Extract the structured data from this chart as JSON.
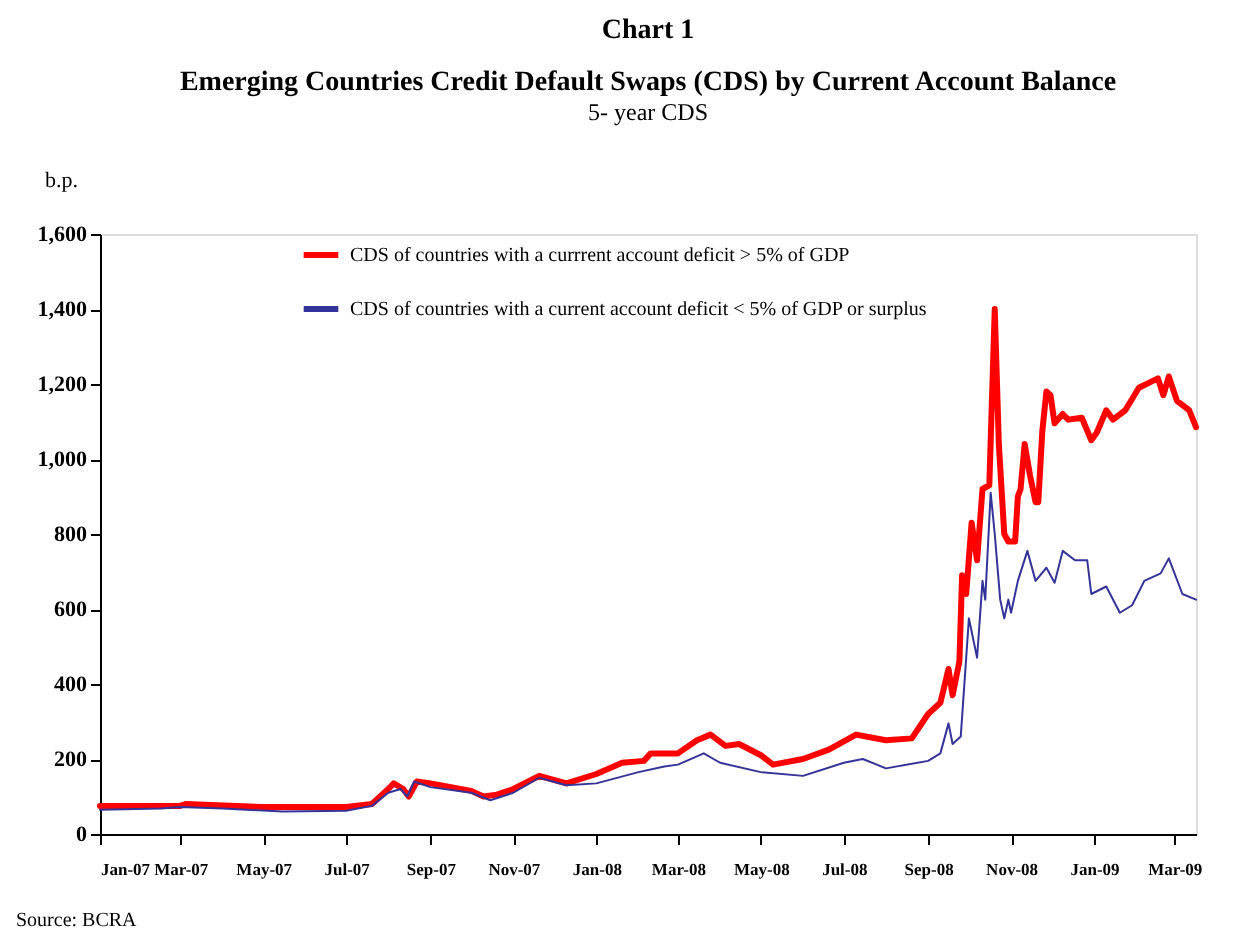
{
  "chart_data": {
    "type": "line",
    "title": "Emerging Countries Credit Default Swaps (CDS) by Current Account Balance",
    "subtitle": "5- year CDS",
    "ylabel": "b.p.",
    "annotations": [
      "Chart 1",
      "Source: BCRA"
    ],
    "xlim": [
      "2007-01-01",
      "2009-03-17"
    ],
    "xticks": [
      {
        "value": "2007-01-01",
        "label": "Jan-07"
      },
      {
        "value": "2007-03-01",
        "label": "Mar-07"
      },
      {
        "value": "2007-05-01",
        "label": "May-07"
      },
      {
        "value": "2007-07-01",
        "label": "Jul-07"
      },
      {
        "value": "2007-09-01",
        "label": "Sep-07"
      },
      {
        "value": "2007-11-01",
        "label": "Nov-07"
      },
      {
        "value": "2008-01-01",
        "label": "Jan-08"
      },
      {
        "value": "2008-03-01",
        "label": "Mar-08"
      },
      {
        "value": "2008-05-01",
        "label": "May-08"
      },
      {
        "value": "2008-07-01",
        "label": "Jul-08"
      },
      {
        "value": "2008-09-01",
        "label": "Sep-08"
      },
      {
        "value": "2008-11-01",
        "label": "Nov-08"
      },
      {
        "value": "2009-01-01",
        "label": "Jan-09"
      },
      {
        "value": "2009-03-01",
        "label": "Mar-09"
      }
    ],
    "ylim": [
      0,
      1600
    ],
    "yticks": [
      {
        "value": 0,
        "label": "0"
      },
      {
        "value": 200,
        "label": "200"
      },
      {
        "value": 400,
        "label": "400"
      },
      {
        "value": 600,
        "label": "600"
      },
      {
        "value": 800,
        "label": "800"
      },
      {
        "value": 1000,
        "label": "1,000"
      },
      {
        "value": 1200,
        "label": "1,200"
      },
      {
        "value": 1400,
        "label": "1,400"
      },
      {
        "value": 1600,
        "label": "1,600"
      }
    ],
    "grid": false,
    "legend": "top",
    "marker": "none",
    "line_style": "solid",
    "series": [
      {
        "name": "CDS of countries with a currrent account deficit > 5% of GDP",
        "color": "#ff0000",
        "x": [
          "2007-01-01",
          "2007-03-01",
          "2007-03-05",
          "2007-05-01",
          "2007-07-01",
          "2007-07-20",
          "2007-08-01",
          "2007-08-05",
          "2007-08-12",
          "2007-08-16",
          "2007-08-22",
          "2007-09-01",
          "2007-10-01",
          "2007-10-10",
          "2007-10-20",
          "2007-11-01",
          "2007-11-20",
          "2007-12-10",
          "2008-01-01",
          "2008-01-20",
          "2008-02-05",
          "2008-02-10",
          "2008-03-01",
          "2008-03-15",
          "2008-03-25",
          "2008-04-05",
          "2008-04-15",
          "2008-05-01",
          "2008-05-10",
          "2008-06-01",
          "2008-06-20",
          "2008-07-10",
          "2008-08-01",
          "2008-08-20",
          "2008-09-01",
          "2008-09-10",
          "2008-09-16",
          "2008-09-19",
          "2008-09-24",
          "2008-09-26",
          "2008-09-29",
          "2008-10-03",
          "2008-10-07",
          "2008-10-11",
          "2008-10-16",
          "2008-10-20",
          "2008-10-23",
          "2008-10-27",
          "2008-10-30",
          "2008-11-04",
          "2008-11-06",
          "2008-11-08",
          "2008-11-11",
          "2008-11-15",
          "2008-11-19",
          "2008-11-21",
          "2008-11-24",
          "2008-11-27",
          "2008-11-30",
          "2008-12-03",
          "2008-12-09",
          "2008-12-13",
          "2008-12-23",
          "2008-12-30",
          "2009-01-03",
          "2009-01-10",
          "2009-01-15",
          "2009-01-24",
          "2009-02-03",
          "2009-02-17",
          "2009-02-21",
          "2009-02-25",
          "2009-03-03",
          "2009-03-12",
          "2009-03-17"
        ],
        "values": [
          75,
          75,
          80,
          72,
          72,
          80,
          120,
          135,
          120,
          100,
          140,
          135,
          115,
          100,
          105,
          120,
          155,
          135,
          160,
          190,
          195,
          215,
          215,
          250,
          265,
          235,
          240,
          210,
          185,
          200,
          225,
          265,
          250,
          255,
          320,
          350,
          440,
          370,
          460,
          690,
          640,
          830,
          730,
          920,
          930,
          1400,
          1040,
          800,
          780,
          780,
          900,
          920,
          1040,
          955,
          885,
          885,
          1075,
          1180,
          1170,
          1095,
          1120,
          1105,
          1110,
          1050,
          1070,
          1130,
          1105,
          1130,
          1190,
          1215,
          1170,
          1220,
          1155,
          1130,
          1085
        ]
      },
      {
        "name": "CDS of countries with a current account deficit < 5% of GDP or surplus",
        "color": "#333399",
        "x": [
          "2007-01-01",
          "2007-02-15",
          "2007-03-01",
          "2007-04-01",
          "2007-05-15",
          "2007-07-01",
          "2007-07-20",
          "2007-08-01",
          "2007-08-10",
          "2007-08-15",
          "2007-08-20",
          "2007-09-01",
          "2007-10-01",
          "2007-10-15",
          "2007-11-01",
          "2007-11-20",
          "2007-12-10",
          "2008-01-01",
          "2008-02-01",
          "2008-02-20",
          "2008-03-01",
          "2008-03-20",
          "2008-04-01",
          "2008-05-01",
          "2008-06-01",
          "2008-07-01",
          "2008-07-15",
          "2008-08-01",
          "2008-09-01",
          "2008-09-10",
          "2008-09-16",
          "2008-09-19",
          "2008-09-25",
          "2008-10-01",
          "2008-10-07",
          "2008-10-11",
          "2008-10-13",
          "2008-10-17",
          "2008-10-20",
          "2008-10-24",
          "2008-10-27",
          "2008-10-30",
          "2008-11-01",
          "2008-11-06",
          "2008-11-13",
          "2008-11-19",
          "2008-11-27",
          "2008-12-03",
          "2008-12-09",
          "2008-12-18",
          "2008-12-27",
          "2008-12-30",
          "2009-01-10",
          "2009-01-20",
          "2009-01-29",
          "2009-02-07",
          "2009-02-19",
          "2009-02-25",
          "2009-03-07",
          "2009-03-17"
        ],
        "values": [
          65,
          68,
          72,
          68,
          60,
          62,
          75,
          110,
          120,
          100,
          140,
          125,
          110,
          90,
          110,
          150,
          130,
          135,
          165,
          180,
          185,
          215,
          190,
          165,
          155,
          190,
          200,
          175,
          195,
          215,
          295,
          240,
          260,
          575,
          470,
          675,
          625,
          910,
          800,
          625,
          575,
          625,
          590,
          675,
          755,
          675,
          710,
          670,
          755,
          730,
          730,
          640,
          660,
          590,
          610,
          675,
          695,
          735,
          640,
          625
        ]
      }
    ]
  }
}
